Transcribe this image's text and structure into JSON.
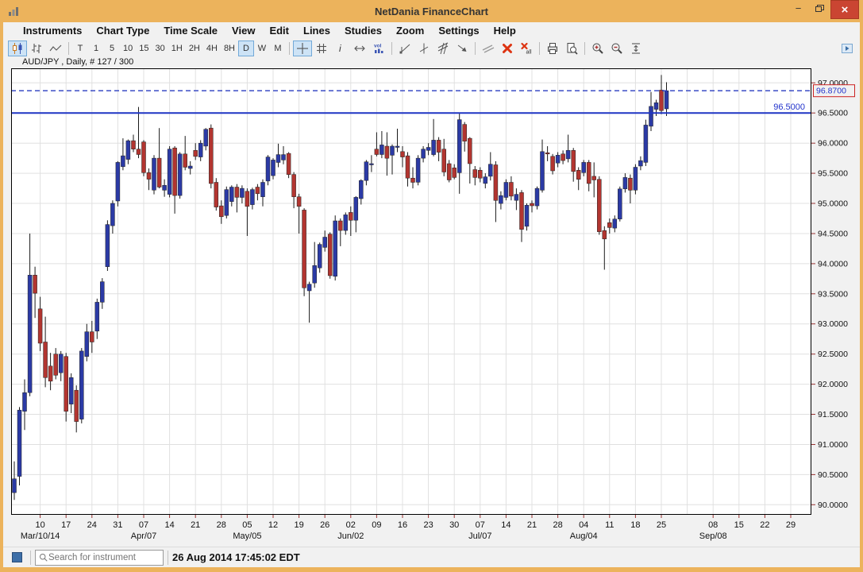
{
  "window": {
    "title": "NetDania FinanceChart",
    "controls": {
      "minimize": "−",
      "restore": "restore",
      "close": "×"
    }
  },
  "menubar": {
    "items": [
      "Instruments",
      "Chart Type",
      "Time Scale",
      "View",
      "Edit",
      "Lines",
      "Studies",
      "Zoom",
      "Settings",
      "Help"
    ]
  },
  "toolbar": {
    "items": [
      {
        "icon": "candlestick-icon",
        "selected": true
      },
      {
        "icon": "ohlc-bars-icon"
      },
      {
        "icon": "line-chart-icon"
      },
      {
        "sep": true
      },
      {
        "label": "T"
      },
      {
        "label": "1"
      },
      {
        "label": "5"
      },
      {
        "label": "10"
      },
      {
        "label": "15"
      },
      {
        "label": "30"
      },
      {
        "label": "1H"
      },
      {
        "label": "2H"
      },
      {
        "label": "4H"
      },
      {
        "label": "8H"
      },
      {
        "label": "D",
        "selected": true
      },
      {
        "label": "W"
      },
      {
        "label": "M"
      },
      {
        "sep": true
      },
      {
        "icon": "crosshair-icon",
        "selected": true
      },
      {
        "icon": "grid-icon"
      },
      {
        "icon": "info-icon"
      },
      {
        "icon": "h-scroll-icon"
      },
      {
        "icon": "volume-icon"
      },
      {
        "sep": true
      },
      {
        "icon": "trendline-icon"
      },
      {
        "icon": "vline-tool-icon"
      },
      {
        "icon": "channel-icon"
      },
      {
        "icon": "arrow-tool-icon"
      },
      {
        "sep": true
      },
      {
        "icon": "parallel-lines-icon"
      },
      {
        "icon": "delete-icon"
      },
      {
        "icon": "delete-all-icon"
      },
      {
        "sep": true
      },
      {
        "icon": "print-icon"
      },
      {
        "icon": "print-preview-icon"
      },
      {
        "sep": true
      },
      {
        "icon": "zoom-in-icon"
      },
      {
        "icon": "zoom-out-icon"
      },
      {
        "icon": "fit-vertical-icon"
      }
    ],
    "right_button_icon": "panel-toggle-icon"
  },
  "chart_header": {
    "label": "AUD/JPY , Daily, # 127 / 300"
  },
  "statusbar": {
    "search_placeholder": "Search for instrument",
    "timestamp": "26 Aug 2014 17:45:02 EDT"
  },
  "colors": {
    "candle_up": "#2b3aa5",
    "candle_down": "#b23530",
    "wick": "#1a1a1a",
    "level_line": "#1f35c4",
    "last_price_line": "#2a3cc0",
    "badge_border": "#cc2222",
    "badge_text": "#2233cc",
    "grid": "#e0e0e0",
    "axis_tick": "#993333",
    "titlebar": "#ecb35c",
    "close_button": "#ca4532",
    "selected_button_bg": "#cde3f6"
  },
  "chart_data": {
    "type": "candlestick",
    "title": "AUD/JPY , Daily, # 127 / 300",
    "symbol": "AUD/JPY",
    "timeframe": "Daily",
    "bars_shown": 127,
    "bars_total": 300,
    "ylim": [
      90.0,
      97.0
    ],
    "y_step": 0.5,
    "y_label_format": "4dp",
    "grid": true,
    "levels": {
      "horizontal_line": {
        "price": 96.5,
        "label": "96.5000"
      },
      "last_price_dashed": {
        "price": 96.87,
        "label": "96.8700"
      }
    },
    "x_ticks": [
      [
        5,
        "10"
      ],
      [
        10,
        "17"
      ],
      [
        15,
        "24"
      ],
      [
        20,
        "31"
      ],
      [
        25,
        "07"
      ],
      [
        30,
        "14"
      ],
      [
        35,
        "21"
      ],
      [
        40,
        "28"
      ],
      [
        45,
        "05"
      ],
      [
        50,
        "12"
      ],
      [
        55,
        "19"
      ],
      [
        60,
        "26"
      ],
      [
        65,
        "02"
      ],
      [
        70,
        "09"
      ],
      [
        75,
        "16"
      ],
      [
        80,
        "23"
      ],
      [
        85,
        "30"
      ],
      [
        90,
        "07"
      ],
      [
        95,
        "14"
      ],
      [
        100,
        "21"
      ],
      [
        105,
        "28"
      ],
      [
        110,
        "04"
      ],
      [
        115,
        "11"
      ],
      [
        120,
        "18"
      ],
      [
        125,
        "25"
      ],
      [
        135,
        "08"
      ],
      [
        140,
        "15"
      ],
      [
        145,
        "22"
      ],
      [
        150,
        "29"
      ]
    ],
    "x_grid_extra": [
      130
    ],
    "month_labels": [
      [
        5,
        "Mar/10/14"
      ],
      [
        25,
        "Apr/07"
      ],
      [
        45,
        "May/05"
      ],
      [
        65,
        "Jun/02"
      ],
      [
        90,
        "Jul/07"
      ],
      [
        110,
        "Aug/04"
      ],
      [
        135,
        "Sep/08"
      ]
    ],
    "x_slots": 155,
    "candles_ohlc": [
      [
        90.2,
        90.72,
        90.08,
        90.43
      ],
      [
        90.47,
        91.62,
        90.32,
        91.57
      ],
      [
        91.55,
        92.08,
        91.24,
        91.86
      ],
      [
        91.86,
        94.5,
        91.8,
        93.81
      ],
      [
        93.81,
        93.95,
        93.1,
        93.51
      ],
      [
        93.25,
        93.45,
        92.55,
        92.68
      ],
      [
        92.7,
        93.12,
        91.95,
        92.11
      ],
      [
        92.3,
        92.52,
        91.9,
        92.05
      ],
      [
        92.5,
        92.6,
        92.08,
        92.15
      ],
      [
        92.19,
        92.55,
        92.05,
        92.5
      ],
      [
        92.46,
        92.52,
        91.38,
        91.55
      ],
      [
        91.67,
        92.18,
        91.52,
        92.11
      ],
      [
        91.9,
        91.98,
        91.2,
        91.38
      ],
      [
        91.42,
        92.6,
        91.35,
        92.55
      ],
      [
        92.46,
        93.0,
        92.38,
        92.87
      ],
      [
        92.87,
        93.05,
        92.52,
        92.7
      ],
      [
        92.88,
        93.42,
        92.75,
        93.36
      ],
      [
        93.36,
        93.76,
        93.25,
        93.7
      ],
      [
        93.95,
        94.72,
        93.88,
        94.65
      ],
      [
        94.63,
        95.05,
        94.5,
        95.0
      ],
      [
        95.04,
        95.7,
        94.95,
        95.68
      ],
      [
        95.61,
        96.08,
        95.55,
        95.79
      ],
      [
        95.73,
        96.06,
        95.65,
        96.04
      ],
      [
        96.04,
        96.14,
        95.85,
        95.9
      ],
      [
        95.9,
        96.6,
        95.75,
        95.81
      ],
      [
        96.02,
        96.05,
        95.45,
        95.51
      ],
      [
        95.51,
        95.58,
        95.22,
        95.4
      ],
      [
        95.22,
        95.8,
        95.15,
        95.75
      ],
      [
        95.75,
        96.25,
        95.25,
        95.27
      ],
      [
        95.22,
        95.4,
        95.11,
        95.3
      ],
      [
        95.15,
        95.95,
        95.1,
        95.9
      ],
      [
        95.92,
        95.95,
        94.83,
        95.13
      ],
      [
        95.13,
        95.85,
        95.08,
        95.82
      ],
      [
        95.82,
        96.12,
        95.55,
        95.6
      ],
      [
        95.58,
        95.7,
        95.48,
        95.62
      ],
      [
        95.88,
        96.0,
        95.72,
        95.78
      ],
      [
        95.77,
        96.05,
        95.7,
        96.0
      ],
      [
        95.95,
        96.25,
        95.88,
        96.23
      ],
      [
        96.25,
        96.31,
        95.25,
        95.33
      ],
      [
        95.35,
        95.42,
        94.88,
        94.94
      ],
      [
        94.96,
        95.05,
        94.66,
        94.78
      ],
      [
        94.8,
        95.28,
        94.75,
        95.23
      ],
      [
        95.03,
        95.3,
        94.95,
        95.27
      ],
      [
        95.27,
        95.32,
        94.85,
        95.1
      ],
      [
        95.1,
        95.3,
        95.0,
        95.25
      ],
      [
        95.2,
        95.25,
        94.46,
        94.95
      ],
      [
        94.98,
        95.26,
        94.9,
        95.23
      ],
      [
        95.27,
        95.32,
        95.05,
        95.16
      ],
      [
        95.11,
        95.4,
        94.95,
        95.35
      ],
      [
        95.37,
        95.8,
        95.3,
        95.77
      ],
      [
        95.46,
        95.75,
        95.4,
        95.72
      ],
      [
        95.68,
        95.99,
        95.6,
        95.81
      ],
      [
        95.72,
        95.95,
        95.65,
        95.81
      ],
      [
        95.83,
        95.85,
        95.42,
        95.48
      ],
      [
        95.48,
        95.52,
        94.92,
        95.11
      ],
      [
        95.11,
        95.16,
        94.5,
        94.95
      ],
      [
        94.89,
        94.92,
        93.46,
        93.6
      ],
      [
        93.55,
        93.7,
        93.02,
        93.66
      ],
      [
        93.68,
        94.36,
        93.6,
        93.97
      ],
      [
        93.93,
        94.35,
        93.85,
        94.32
      ],
      [
        94.27,
        94.55,
        94.2,
        94.44
      ],
      [
        94.49,
        94.52,
        93.75,
        93.8
      ],
      [
        93.79,
        94.8,
        93.72,
        94.71
      ],
      [
        94.71,
        94.75,
        94.29,
        94.55
      ],
      [
        94.55,
        94.85,
        94.48,
        94.81
      ],
      [
        94.85,
        94.95,
        94.46,
        94.72
      ],
      [
        94.72,
        95.12,
        94.52,
        95.1
      ],
      [
        95.08,
        95.4,
        94.98,
        95.38
      ],
      [
        95.38,
        95.72,
        95.3,
        95.69
      ],
      [
        95.64,
        95.8,
        95.52,
        95.66
      ],
      [
        95.9,
        96.18,
        95.78,
        95.81
      ],
      [
        95.81,
        96.2,
        95.75,
        95.97
      ],
      [
        95.95,
        96.18,
        95.46,
        95.75
      ],
      [
        95.8,
        95.98,
        95.48,
        95.95
      ],
      [
        95.93,
        96.24,
        95.85,
        95.95
      ],
      [
        95.86,
        95.95,
        95.6,
        95.77
      ],
      [
        95.79,
        95.85,
        95.28,
        95.42
      ],
      [
        95.42,
        95.6,
        95.25,
        95.35
      ],
      [
        95.35,
        95.8,
        95.3,
        95.75
      ],
      [
        95.75,
        95.95,
        95.68,
        95.9
      ],
      [
        95.88,
        96.0,
        95.8,
        95.93
      ],
      [
        95.81,
        96.4,
        95.78,
        96.05
      ],
      [
        96.05,
        96.1,
        95.7,
        95.85
      ],
      [
        95.9,
        96.07,
        95.45,
        95.52
      ],
      [
        95.66,
        95.72,
        95.35,
        95.39
      ],
      [
        95.59,
        95.65,
        95.4,
        95.43
      ],
      [
        95.51,
        96.49,
        95.16,
        96.39
      ],
      [
        96.31,
        96.35,
        95.86,
        96.03
      ],
      [
        96.08,
        96.1,
        95.33,
        95.66
      ],
      [
        95.56,
        95.62,
        95.3,
        95.43
      ],
      [
        95.55,
        95.6,
        95.35,
        95.42
      ],
      [
        95.33,
        95.5,
        95.25,
        95.44
      ],
      [
        95.45,
        95.85,
        95.38,
        95.65
      ],
      [
        95.64,
        95.7,
        94.69,
        95.05
      ],
      [
        95.0,
        95.2,
        94.9,
        95.13
      ],
      [
        95.1,
        95.4,
        95.05,
        95.35
      ],
      [
        95.35,
        95.45,
        95.05,
        95.12
      ],
      [
        95.05,
        95.25,
        94.89,
        95.15
      ],
      [
        95.18,
        95.22,
        94.36,
        94.57
      ],
      [
        94.62,
        95.0,
        94.55,
        94.97
      ],
      [
        95.0,
        95.05,
        94.85,
        94.96
      ],
      [
        94.96,
        95.28,
        94.9,
        95.25
      ],
      [
        95.22,
        96.06,
        95.18,
        95.86
      ],
      [
        95.84,
        95.95,
        95.7,
        95.82
      ],
      [
        95.78,
        95.82,
        95.48,
        95.54
      ],
      [
        95.67,
        95.85,
        95.6,
        95.8
      ],
      [
        95.82,
        95.88,
        95.65,
        95.71
      ],
      [
        95.74,
        96.14,
        95.68,
        95.88
      ],
      [
        95.88,
        95.92,
        95.36,
        95.53
      ],
      [
        95.55,
        95.6,
        95.22,
        95.4
      ],
      [
        95.51,
        95.72,
        95.45,
        95.68
      ],
      [
        95.68,
        95.72,
        95.2,
        95.33
      ],
      [
        95.45,
        95.68,
        95.1,
        95.39
      ],
      [
        95.4,
        95.45,
        94.48,
        94.53
      ],
      [
        94.55,
        94.62,
        93.9,
        94.41
      ],
      [
        94.68,
        94.75,
        94.5,
        94.6
      ],
      [
        94.59,
        94.8,
        94.52,
        94.74
      ],
      [
        94.74,
        95.28,
        94.7,
        95.24
      ],
      [
        95.24,
        95.5,
        95.18,
        95.43
      ],
      [
        95.42,
        95.48,
        95.0,
        95.22
      ],
      [
        95.22,
        95.65,
        95.15,
        95.6
      ],
      [
        95.62,
        95.78,
        95.55,
        95.71
      ],
      [
        95.68,
        96.39,
        95.62,
        96.3
      ],
      [
        96.28,
        96.85,
        96.2,
        96.61
      ],
      [
        96.56,
        96.72,
        96.45,
        96.67
      ],
      [
        96.88,
        97.13,
        96.48,
        96.54
      ],
      [
        96.57,
        97.01,
        96.45,
        96.87
      ]
    ]
  }
}
